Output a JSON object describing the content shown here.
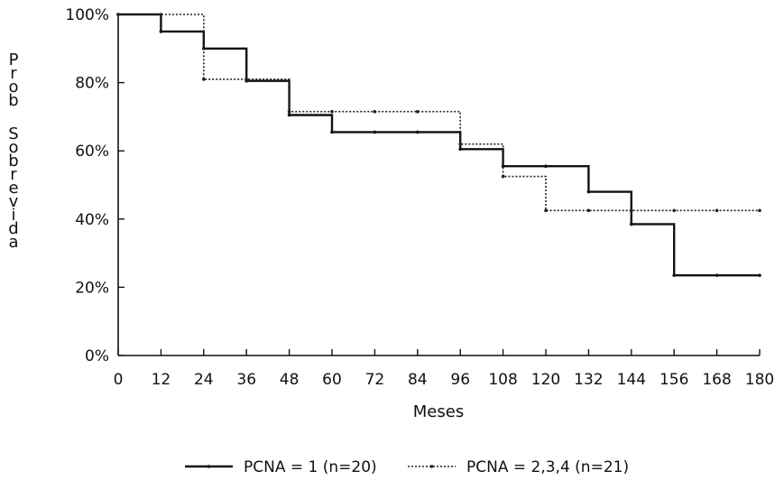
{
  "chart_data": {
    "type": "line",
    "step": true,
    "xlabel": "Meses",
    "ylabel": "Prob Sobrevida",
    "xlim": [
      0,
      180
    ],
    "ylim": [
      0,
      100
    ],
    "x_ticks": [
      0,
      12,
      24,
      36,
      48,
      60,
      72,
      84,
      96,
      108,
      120,
      132,
      144,
      156,
      168,
      180
    ],
    "x_tick_labels": [
      "0",
      "12",
      "24",
      "36",
      "48",
      "60",
      "72",
      "84",
      "96",
      "108",
      "120",
      "132",
      "144",
      "156",
      "168",
      "180"
    ],
    "y_ticks": [
      0,
      20,
      40,
      60,
      80,
      100
    ],
    "y_tick_labels": [
      "0%",
      "20%",
      "40%",
      "60%",
      "80%",
      "100%"
    ],
    "grid": false,
    "legend_position": "bottom",
    "series": [
      {
        "name": "PCNA = 1 (n=20)",
        "style": "solid",
        "x": [
          0,
          12,
          24,
          36,
          48,
          60,
          72,
          84,
          96,
          108,
          120,
          132,
          144,
          156,
          168,
          180
        ],
        "y": [
          100,
          95,
          90,
          80.5,
          70.5,
          65.5,
          65.5,
          65.5,
          60.5,
          55.5,
          55.5,
          48,
          38.5,
          23.5,
          23.5,
          23.5
        ]
      },
      {
        "name": "PCNA = 2,3,4 (n=21)",
        "style": "dotted",
        "x": [
          0,
          12,
          24,
          36,
          48,
          60,
          72,
          84,
          96,
          108,
          120,
          132,
          144,
          156,
          168,
          180
        ],
        "y": [
          100,
          100,
          81,
          81,
          71.5,
          71.5,
          71.5,
          71.5,
          62,
          52.5,
          42.5,
          42.5,
          42.5,
          42.5,
          42.5,
          42.5
        ]
      }
    ]
  }
}
